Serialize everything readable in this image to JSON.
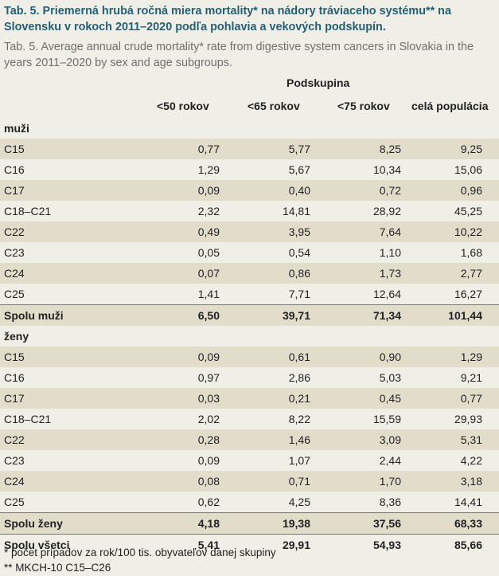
{
  "title": "Tab. 5. Priemerná hrubá ročná miera mortality* na nádory tráviaceho systému** na Slovensku v rokoch 2011–2020 podľa pohlavia a vekových podskupín.",
  "subtitle": "Tab. 5. Average annual crude mortality* rate from digestive system cancers in Slovakia in the years 2011–2020 by sex and age subgroups.",
  "group_header": "Podskupina",
  "columns": [
    "<50 rokov",
    "<65 rokov",
    "<75 rokov",
    "celá populácia"
  ],
  "rows": [
    {
      "label": "muži",
      "kind": "section",
      "stripe": false,
      "values": []
    },
    {
      "label": "C15",
      "kind": "data",
      "stripe": true,
      "values": [
        "0,77",
        "5,77",
        "8,25",
        "9,25"
      ]
    },
    {
      "label": "C16",
      "kind": "data",
      "stripe": false,
      "values": [
        "1,29",
        "5,67",
        "10,34",
        "15,06"
      ]
    },
    {
      "label": "C17",
      "kind": "data",
      "stripe": true,
      "values": [
        "0,09",
        "0,40",
        "0,72",
        "0,96"
      ]
    },
    {
      "label": "C18–C21",
      "kind": "data",
      "stripe": false,
      "values": [
        "2,32",
        "14,81",
        "28,92",
        "45,25"
      ]
    },
    {
      "label": "C22",
      "kind": "data",
      "stripe": true,
      "values": [
        "0,49",
        "3,95",
        "7,64",
        "10,22"
      ]
    },
    {
      "label": "C23",
      "kind": "data",
      "stripe": false,
      "values": [
        "0,05",
        "0,54",
        "1,10",
        "1,68"
      ]
    },
    {
      "label": "C24",
      "kind": "data",
      "stripe": true,
      "values": [
        "0,07",
        "0,86",
        "1,73",
        "2,77"
      ]
    },
    {
      "label": "C25",
      "kind": "data",
      "stripe": false,
      "values": [
        "1,41",
        "7,71",
        "12,64",
        "16,27"
      ]
    },
    {
      "label": "Spolu muži",
      "kind": "total",
      "stripe": true,
      "values": [
        "6,50",
        "39,71",
        "71,34",
        "101,44"
      ]
    },
    {
      "label": "ženy",
      "kind": "section",
      "stripe": false,
      "values": []
    },
    {
      "label": "C15",
      "kind": "data",
      "stripe": true,
      "values": [
        "0,09",
        "0,61",
        "0,90",
        "1,29"
      ]
    },
    {
      "label": "C16",
      "kind": "data",
      "stripe": false,
      "values": [
        "0,97",
        "2,86",
        "5,03",
        "9,21"
      ]
    },
    {
      "label": "C17",
      "kind": "data",
      "stripe": true,
      "values": [
        "0,03",
        "0,21",
        "0,45",
        "0,77"
      ]
    },
    {
      "label": "C18–C21",
      "kind": "data",
      "stripe": false,
      "values": [
        "2,02",
        "8,22",
        "15,59",
        "29,93"
      ]
    },
    {
      "label": "C22",
      "kind": "data",
      "stripe": true,
      "values": [
        "0,28",
        "1,46",
        "3,09",
        "5,31"
      ]
    },
    {
      "label": "C23",
      "kind": "data",
      "stripe": false,
      "values": [
        "0,09",
        "1,07",
        "2,44",
        "4,22"
      ]
    },
    {
      "label": "C24",
      "kind": "data",
      "stripe": true,
      "values": [
        "0,08",
        "0,71",
        "1,70",
        "3,18"
      ]
    },
    {
      "label": "C25",
      "kind": "data",
      "stripe": false,
      "values": [
        "0,62",
        "4,25",
        "8,36",
        "14,41"
      ]
    },
    {
      "label": "Spolu ženy",
      "kind": "total",
      "stripe": true,
      "values": [
        "4,18",
        "19,38",
        "37,56",
        "68,33"
      ]
    },
    {
      "label": "Spolu všetci",
      "kind": "total",
      "stripe": false,
      "values": [
        "5,41",
        "29,91",
        "54,93",
        "85,66"
      ]
    }
  ],
  "footnotes": [
    "* počet prípadov za rok/100 tis. obyvateľov danej skupiny",
    "** MKCH-10 C15–C26"
  ]
}
